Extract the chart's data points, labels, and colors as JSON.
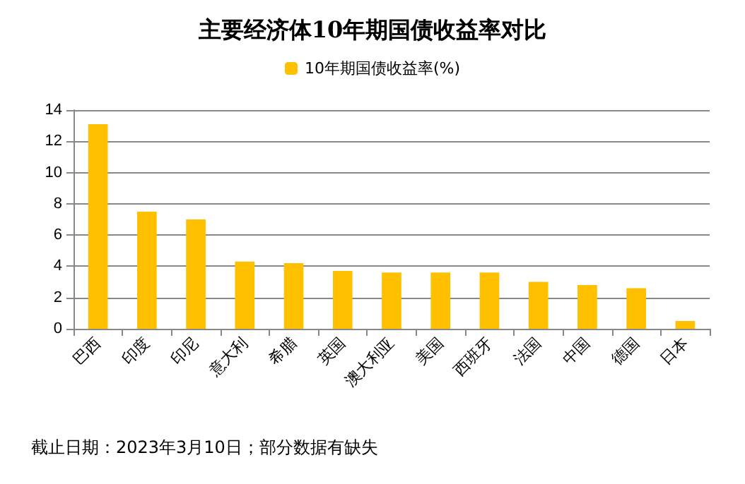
{
  "chart_data": {
    "type": "bar",
    "title": "主要经济体10年期国债收益率对比",
    "categories": [
      "巴西",
      "印度",
      "印尼",
      "意大利",
      "希腊",
      "英国",
      "澳大利亚",
      "美国",
      "西班牙",
      "法国",
      "中国",
      "德国",
      "日本"
    ],
    "series": [
      {
        "name": "10年期国债收益率(%)",
        "color": "#ffc000",
        "values": [
          13.1,
          7.5,
          7.0,
          4.3,
          4.2,
          3.7,
          3.6,
          3.6,
          3.6,
          3.0,
          2.8,
          2.6,
          0.5
        ]
      }
    ],
    "ylim": [
      0,
      14
    ],
    "yticks": [
      0,
      2,
      4,
      6,
      8,
      10,
      12,
      14
    ],
    "grid": "y",
    "legend": "top",
    "annotations": [
      "截止日期：2023年3月10日；部分数据有缺失"
    ]
  }
}
